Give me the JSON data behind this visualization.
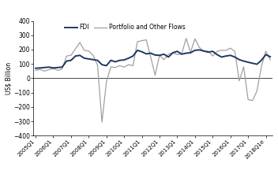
{
  "ylabel": "US$ Billion",
  "legend_fdi": "FDI",
  "legend_portfolio": "Portfolio and Other Flows",
  "fdi_color": "#1F3864",
  "portfolio_color": "#A0A0A0",
  "ylim": [
    -400,
    400
  ],
  "yticks": [
    -400,
    -300,
    -200,
    -100,
    0,
    100,
    200,
    300,
    400
  ],
  "x_labels": [
    "2005Q1",
    "2006Q1",
    "2007Q1",
    "2008Q1",
    "2009Q1",
    "2010Q1",
    "2011Q1",
    "2012Q1",
    "2013Q1",
    "2014Q1",
    "2015Q1",
    "2016Q1",
    "2017Q1",
    "2018Q1e"
  ],
  "fdi": [
    70,
    72,
    75,
    78,
    72,
    75,
    78,
    120,
    125,
    155,
    160,
    140,
    135,
    130,
    125,
    95,
    88,
    125,
    115,
    125,
    128,
    140,
    155,
    195,
    185,
    170,
    175,
    162,
    160,
    168,
    148,
    178,
    188,
    168,
    175,
    178,
    195,
    198,
    190,
    182,
    188,
    165,
    148,
    155,
    160,
    148,
    130,
    120,
    112,
    105,
    98,
    125,
    165,
    150
  ],
  "portfolio": [
    55,
    62,
    50,
    60,
    68,
    55,
    65,
    155,
    160,
    205,
    250,
    195,
    190,
    160,
    90,
    -305,
    -25,
    80,
    75,
    88,
    78,
    95,
    88,
    255,
    262,
    268,
    148,
    22,
    160,
    130,
    168,
    178,
    165,
    170,
    278,
    182,
    275,
    215,
    188,
    190,
    155,
    188,
    195,
    195,
    210,
    188,
    -18,
    80,
    -148,
    -155,
    -88,
    82,
    190,
    128
  ]
}
